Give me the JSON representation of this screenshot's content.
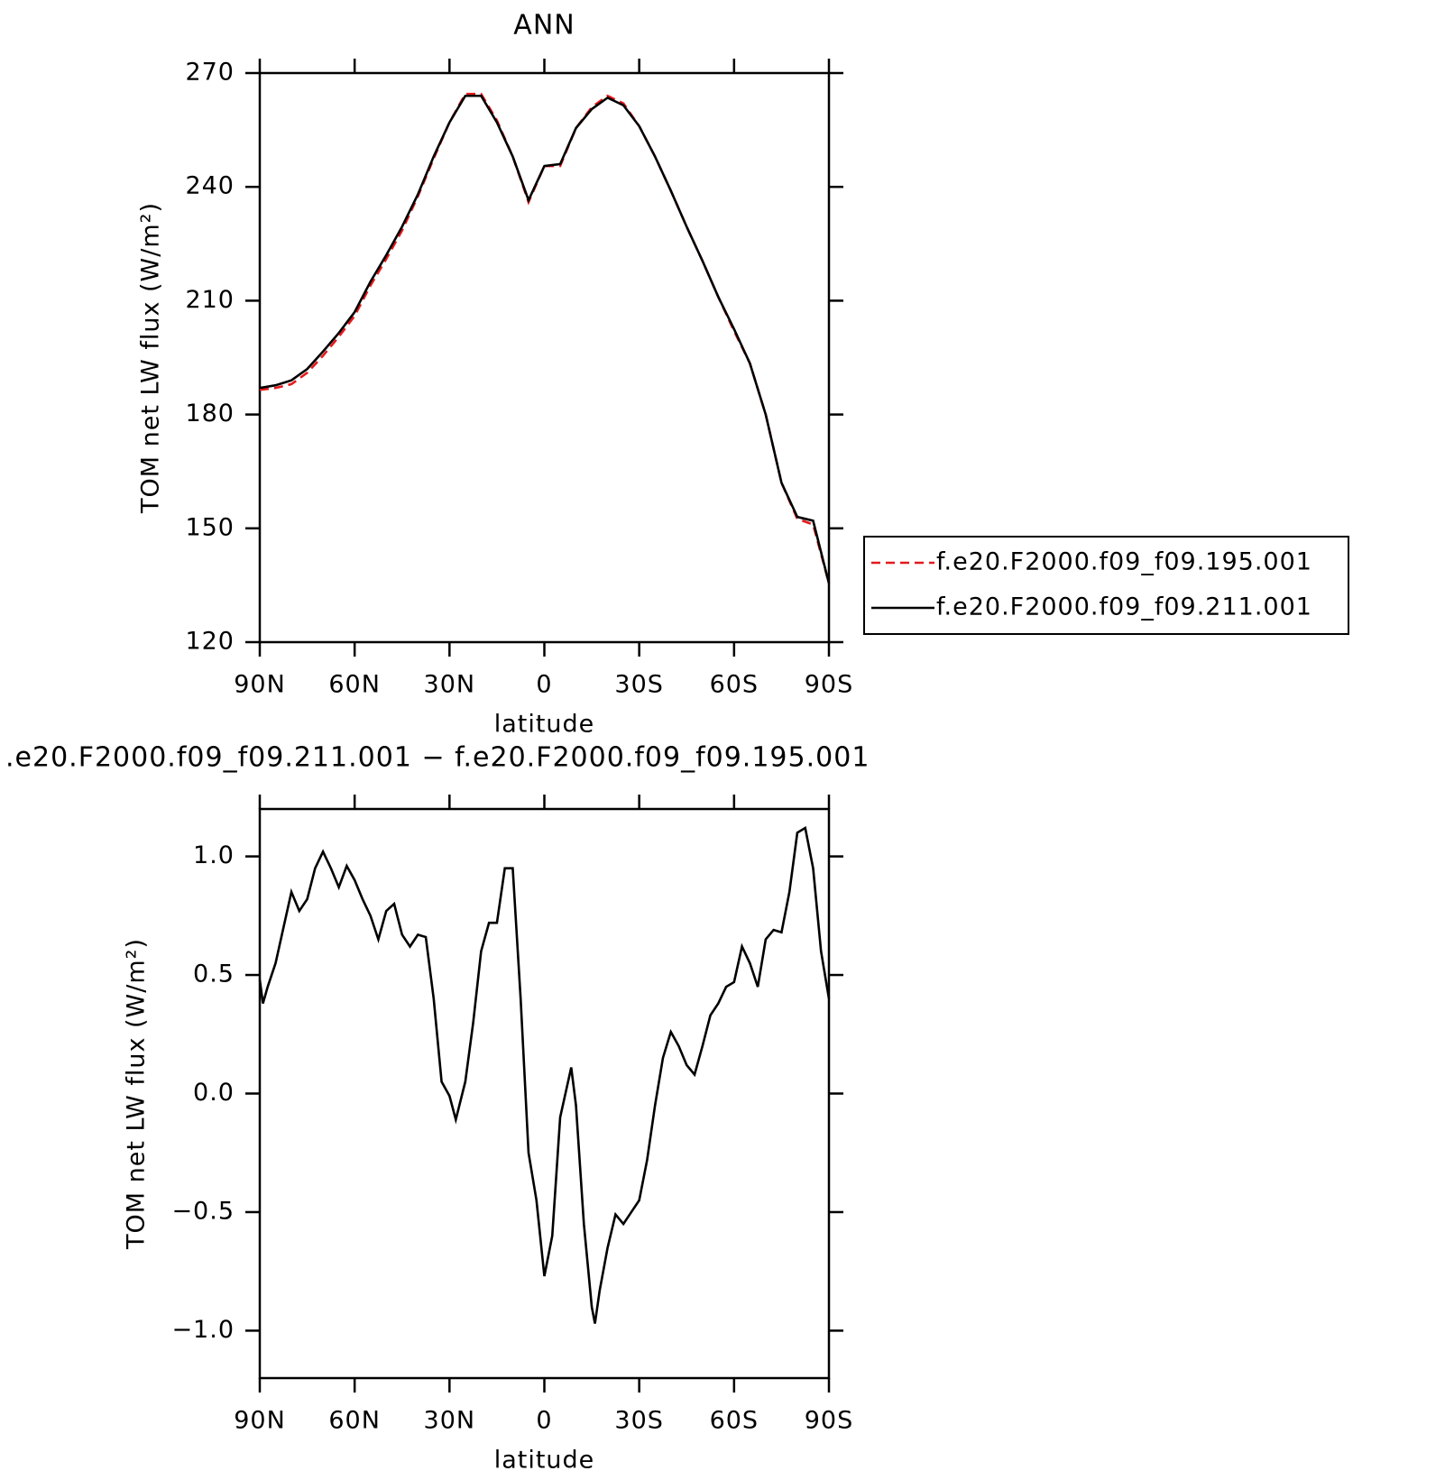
{
  "chart_data": [
    {
      "type": "line",
      "title": "ANN",
      "xlabel": "latitude",
      "ylabel": "TOM net LW flux (W/m²)",
      "x": [
        90,
        85,
        80,
        75,
        70,
        65,
        60,
        55,
        50,
        45,
        40,
        35,
        30,
        25,
        20,
        15,
        10,
        5,
        0,
        -5,
        -10,
        -15,
        -20,
        -25,
        -30,
        -35,
        -40,
        -45,
        -50,
        -55,
        -60,
        -65,
        -70,
        -75,
        -80,
        -85,
        -90
      ],
      "series": [
        {
          "name": "f.e20.F2000.f09_f09.195.001",
          "color": "#e41a1c",
          "dashed": true,
          "values": [
            186.5,
            187,
            188,
            191,
            195.5,
            200.5,
            206,
            214,
            221,
            228.5,
            237.5,
            247.5,
            257,
            264.5,
            264.5,
            257.5,
            248,
            236,
            245.5,
            245.5,
            255.5,
            261,
            264,
            262,
            256,
            248,
            239,
            229.5,
            220.5,
            211,
            202,
            193.5,
            180,
            162,
            152.5,
            151,
            135.5
          ]
        },
        {
          "name": "f.e20.F2000.f09_f09.211.001",
          "color": "#000000",
          "dashed": false,
          "values": [
            187,
            187.7,
            189,
            192,
            196.6,
            201.5,
            207,
            215,
            222,
            229.5,
            238,
            248,
            257,
            264,
            264,
            257,
            248,
            236.5,
            245.5,
            246,
            255.5,
            260.5,
            263.5,
            261.5,
            256,
            248,
            239,
            229.5,
            220.5,
            211,
            202.5,
            193.5,
            180,
            162,
            153,
            152,
            135.5
          ]
        }
      ],
      "xlim": [
        90,
        -90
      ],
      "xticks": [
        {
          "value": 90,
          "label": "90N"
        },
        {
          "value": 60,
          "label": "60N"
        },
        {
          "value": 30,
          "label": "30N"
        },
        0,
        {
          "value": -30,
          "label": "30S"
        },
        {
          "value": -60,
          "label": "60S"
        },
        {
          "value": -90,
          "label": "90S"
        }
      ],
      "ylim": [
        120,
        270
      ],
      "yticks": [
        120,
        150,
        180,
        210,
        240,
        270
      ],
      "legend": "right"
    },
    {
      "type": "line",
      "title": ".e20.F2000.f09_f09.211.001 − f.e20.F2000.f09_f09.195.001",
      "xlabel": "latitude",
      "ylabel": "TOM net LW flux (W/m²)",
      "x": [
        90,
        89,
        87.5,
        85,
        82.5,
        80,
        77.5,
        75,
        72.5,
        70,
        67.5,
        65,
        62.5,
        60,
        57.5,
        55,
        52.5,
        50,
        47.5,
        45,
        42.5,
        40,
        37.5,
        35,
        32.5,
        30,
        28,
        25,
        22.5,
        20,
        17.5,
        15,
        12.5,
        10,
        7.5,
        5,
        2.5,
        0,
        -2.5,
        -5,
        -7.5,
        -8.5,
        -10,
        -12.5,
        -15,
        -16,
        -17.5,
        -20,
        -22.5,
        -25,
        -27.5,
        -30,
        -32.5,
        -35,
        -37.5,
        -40,
        -42.5,
        -45,
        -47.5,
        -50,
        -52.5,
        -55,
        -57.5,
        -60,
        -62.5,
        -65,
        -67.5,
        -70,
        -72.5,
        -75,
        -77.5,
        -80,
        -82.5,
        -85,
        -87.5,
        -90
      ],
      "series": [
        {
          "color": "#000000",
          "dashed": false,
          "values": [
            0.48,
            0.38,
            0.45,
            0.55,
            0.7,
            0.85,
            0.77,
            0.82,
            0.95,
            1.02,
            0.95,
            0.87,
            0.96,
            0.9,
            0.82,
            0.75,
            0.65,
            0.77,
            0.8,
            0.67,
            0.62,
            0.67,
            0.66,
            0.4,
            0.05,
            -0.01,
            -0.11,
            0.05,
            0.3,
            0.6,
            0.72,
            0.72,
            0.95,
            0.95,
            0.4,
            -0.25,
            -0.45,
            -0.77,
            -0.6,
            -0.1,
            0.05,
            0.11,
            -0.05,
            -0.55,
            -0.9,
            -0.97,
            -0.83,
            -0.65,
            -0.51,
            -0.55,
            -0.5,
            -0.45,
            -0.28,
            -0.05,
            0.15,
            0.26,
            0.2,
            0.12,
            0.08,
            0.2,
            0.33,
            0.38,
            0.45,
            0.47,
            0.62,
            0.55,
            0.45,
            0.65,
            0.69,
            0.68,
            0.85,
            1.1,
            1.12,
            0.95,
            0.6,
            0.4
          ]
        }
      ],
      "xlim": [
        90,
        -90
      ],
      "xticks": [
        {
          "value": 90,
          "label": "90N"
        },
        {
          "value": 60,
          "label": "60N"
        },
        {
          "value": 30,
          "label": "30N"
        },
        0,
        {
          "value": -30,
          "label": "30S"
        },
        {
          "value": -60,
          "label": "60S"
        },
        {
          "value": -90,
          "label": "90S"
        }
      ],
      "ylim": [
        -1.2,
        1.2
      ],
      "yticks": [
        {
          "value": -1,
          "label": "−1.0"
        },
        {
          "value": -0.5,
          "label": "−0.5"
        },
        {
          "value": 0,
          "label": "0.0"
        },
        0.5,
        {
          "value": 1,
          "label": "1.0"
        }
      ]
    }
  ]
}
